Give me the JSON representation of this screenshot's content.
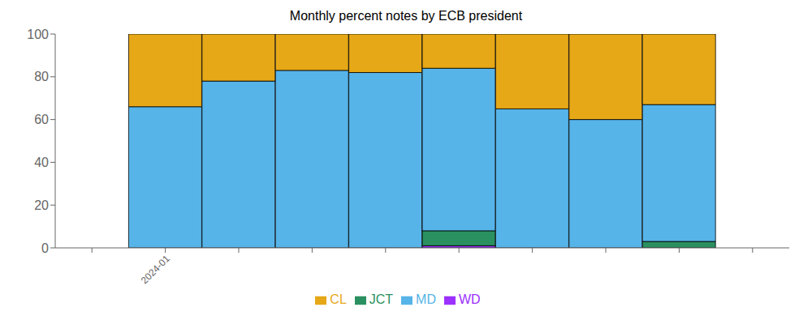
{
  "chart_data": {
    "type": "bar",
    "title": "Monthly percent notes by ECB president",
    "stacked": true,
    "categories": [
      null,
      "2024-01",
      null,
      null,
      null,
      null,
      null,
      null,
      null,
      null
    ],
    "series": [
      {
        "name": "WD",
        "color": "#9b30ff",
        "values": [
          0,
          0,
          0,
          0,
          0,
          1,
          0,
          0,
          0,
          0
        ]
      },
      {
        "name": "JCT",
        "color": "#2a9060",
        "values": [
          0,
          0,
          0,
          0,
          0,
          7,
          0,
          0,
          3,
          0
        ]
      },
      {
        "name": "MD",
        "color": "#56b4e9",
        "values": [
          0,
          66,
          78,
          83,
          82,
          76,
          65,
          60,
          64,
          0
        ]
      },
      {
        "name": "CL",
        "color": "#e6a817",
        "values": [
          0,
          34,
          22,
          17,
          18,
          16,
          35,
          40,
          33,
          0
        ]
      }
    ],
    "ylim": [
      0,
      100
    ],
    "yticks": [
      0,
      20,
      40,
      60,
      80,
      100
    ],
    "grid": false,
    "legend": "bottom"
  }
}
